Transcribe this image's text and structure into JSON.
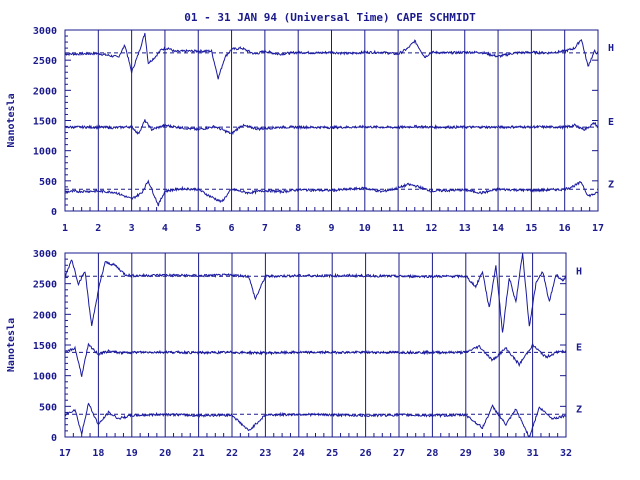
{
  "title": "01 - 31 JAN 94 (Universal Time) CAPE SCHMIDT",
  "colors": {
    "trace": "#1a1aa0",
    "axis": "#1a1a8c",
    "grid": "#1a1a8c",
    "background": "#ffffff"
  },
  "chart_data": [
    {
      "type": "line",
      "panel": "top",
      "ylabel": "Nanotesla",
      "ylim": [
        0,
        3000
      ],
      "yticks": [
        "0",
        "500",
        "1000",
        "1500",
        "2000",
        "2500",
        "3000"
      ],
      "xlim": [
        1,
        17
      ],
      "xticks": [
        "1",
        "2",
        "3",
        "4",
        "5",
        "6",
        "7",
        "8",
        "9",
        "10",
        "11",
        "12",
        "13",
        "14",
        "15",
        "16",
        "17"
      ],
      "grid": "vertical at each day",
      "series": [
        {
          "name": "H",
          "baseline": 2620,
          "x": [
            1,
            2,
            2.3,
            2.6,
            2.8,
            3,
            3.2,
            3.4,
            3.5,
            3.7,
            3.9,
            4.1,
            4.3,
            4.6,
            5,
            5.4,
            5.6,
            5.8,
            6,
            6.3,
            6.7,
            7,
            7.4,
            8,
            8.6,
            9,
            9.5,
            10,
            10.5,
            11,
            11.3,
            11.5,
            11.8,
            12,
            12.5,
            13,
            13.5,
            14,
            14.5,
            15,
            15.5,
            16,
            16.3,
            16.5,
            16.7,
            16.9,
            17
          ],
          "values": [
            2600,
            2610,
            2580,
            2550,
            2750,
            2300,
            2600,
            2950,
            2450,
            2550,
            2680,
            2700,
            2640,
            2650,
            2650,
            2650,
            2200,
            2550,
            2680,
            2700,
            2600,
            2650,
            2600,
            2630,
            2620,
            2630,
            2610,
            2630,
            2630,
            2600,
            2700,
            2820,
            2550,
            2630,
            2620,
            2630,
            2630,
            2560,
            2620,
            2630,
            2620,
            2650,
            2700,
            2850,
            2400,
            2650,
            2600
          ]
        },
        {
          "name": "E",
          "baseline": 1390,
          "x": [
            1,
            2,
            2.5,
            3,
            3.2,
            3.4,
            3.6,
            4,
            4.5,
            5,
            5.5,
            6,
            6.3,
            6.8,
            7.5,
            8,
            9,
            10,
            11,
            11.5,
            12,
            13,
            14,
            15,
            16,
            16.3,
            16.6,
            16.9,
            17
          ],
          "values": [
            1390,
            1390,
            1380,
            1400,
            1280,
            1500,
            1350,
            1420,
            1380,
            1350,
            1400,
            1280,
            1420,
            1360,
            1390,
            1390,
            1385,
            1395,
            1385,
            1400,
            1390,
            1390,
            1390,
            1395,
            1390,
            1420,
            1350,
            1460,
            1380
          ]
        },
        {
          "name": "Z",
          "baseline": 360,
          "x": [
            1,
            2,
            2.5,
            3,
            3.3,
            3.5,
            3.8,
            4,
            4.5,
            5,
            5.3,
            5.7,
            6,
            6.5,
            7,
            7.5,
            8,
            9,
            10,
            10.5,
            11,
            11.3,
            11.5,
            12,
            13,
            13.5,
            14,
            15,
            16,
            16.3,
            16.5,
            16.7,
            17
          ],
          "values": [
            320,
            330,
            310,
            200,
            300,
            500,
            100,
            330,
            370,
            360,
            260,
            150,
            360,
            300,
            340,
            320,
            350,
            340,
            380,
            320,
            380,
            440,
            420,
            330,
            350,
            300,
            360,
            340,
            360,
            420,
            480,
            250,
            300
          ]
        }
      ]
    },
    {
      "type": "line",
      "panel": "bottom",
      "ylabel": "Nanotesla",
      "ylim": [
        0,
        3000
      ],
      "yticks": [
        "0",
        "500",
        "1000",
        "1500",
        "2000",
        "2500",
        "3000"
      ],
      "xlim": [
        17,
        32
      ],
      "xticks": [
        "17",
        "18",
        "19",
        "20",
        "21",
        "22",
        "23",
        "24",
        "25",
        "26",
        "27",
        "28",
        "29",
        "30",
        "31",
        "32"
      ],
      "grid": "vertical at each day",
      "series": [
        {
          "name": "H",
          "baseline": 2620,
          "x": [
            17,
            17.2,
            17.4,
            17.6,
            17.8,
            18,
            18.2,
            18.5,
            18.8,
            19,
            20,
            21,
            22,
            22.5,
            22.7,
            23,
            24,
            25,
            26,
            27,
            28,
            29,
            29.3,
            29.5,
            29.7,
            29.9,
            30.1,
            30.3,
            30.5,
            30.7,
            30.9,
            31.1,
            31.3,
            31.5,
            31.7,
            31.9,
            32
          ],
          "values": [
            2600,
            2900,
            2500,
            2700,
            1800,
            2400,
            2850,
            2800,
            2650,
            2630,
            2640,
            2630,
            2640,
            2620,
            2250,
            2620,
            2630,
            2630,
            2630,
            2620,
            2620,
            2620,
            2450,
            2700,
            2100,
            2800,
            1700,
            2600,
            2200,
            3000,
            1800,
            2500,
            2700,
            2200,
            2650,
            2550,
            2620
          ]
        },
        {
          "name": "E",
          "baseline": 1380,
          "x": [
            17,
            17.3,
            17.5,
            17.7,
            18,
            18.3,
            18.7,
            19,
            20,
            21,
            22,
            23,
            24,
            25,
            26,
            27,
            28,
            29,
            29.4,
            29.8,
            30.2,
            30.6,
            31,
            31.4,
            31.8,
            32
          ],
          "values": [
            1380,
            1450,
            1000,
            1500,
            1350,
            1400,
            1370,
            1380,
            1385,
            1375,
            1380,
            1370,
            1380,
            1380,
            1380,
            1380,
            1380,
            1380,
            1480,
            1250,
            1450,
            1180,
            1500,
            1300,
            1400,
            1380
          ]
        },
        {
          "name": "Z",
          "baseline": 370,
          "x": [
            17,
            17.3,
            17.5,
            17.7,
            18,
            18.3,
            18.6,
            19,
            20,
            21,
            22,
            22.5,
            23,
            24,
            25,
            26,
            27,
            28,
            29,
            29.5,
            29.8,
            30.2,
            30.5,
            30.9,
            31.2,
            31.6,
            32
          ],
          "values": [
            360,
            450,
            50,
            550,
            200,
            400,
            300,
            350,
            370,
            350,
            360,
            100,
            360,
            370,
            360,
            350,
            360,
            350,
            360,
            150,
            500,
            200,
            450,
            0,
            480,
            300,
            350
          ]
        }
      ]
    }
  ]
}
